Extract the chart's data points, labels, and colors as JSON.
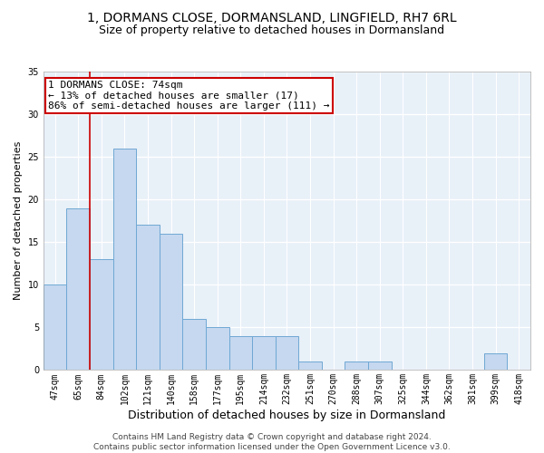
{
  "title": "1, DORMANS CLOSE, DORMANSLAND, LINGFIELD, RH7 6RL",
  "subtitle": "Size of property relative to detached houses in Dormansland",
  "xlabel": "Distribution of detached houses by size in Dormansland",
  "ylabel": "Number of detached properties",
  "categories": [
    "47sqm",
    "65sqm",
    "84sqm",
    "102sqm",
    "121sqm",
    "140sqm",
    "158sqm",
    "177sqm",
    "195sqm",
    "214sqm",
    "232sqm",
    "251sqm",
    "270sqm",
    "288sqm",
    "307sqm",
    "325sqm",
    "344sqm",
    "362sqm",
    "381sqm",
    "399sqm",
    "418sqm"
  ],
  "values": [
    10,
    19,
    13,
    26,
    17,
    16,
    6,
    5,
    4,
    4,
    4,
    1,
    0,
    1,
    1,
    0,
    0,
    0,
    0,
    2,
    0
  ],
  "bar_color": "#c5d8ef",
  "bar_edge_color": "#6fa8d4",
  "highlight_line_color": "#cc0000",
  "annotation_text": "1 DORMANS CLOSE: 74sqm\n← 13% of detached houses are smaller (17)\n86% of semi-detached houses are larger (111) →",
  "annotation_box_color": "#ffffff",
  "annotation_box_edge": "#cc0000",
  "ylim": [
    0,
    35
  ],
  "yticks": [
    0,
    5,
    10,
    15,
    20,
    25,
    30,
    35
  ],
  "background_color": "#e8f0f8",
  "grid_color": "#ffffff",
  "footer": "Contains HM Land Registry data © Crown copyright and database right 2024.\nContains public sector information licensed under the Open Government Licence v3.0.",
  "title_fontsize": 10,
  "subtitle_fontsize": 9,
  "xlabel_fontsize": 9,
  "ylabel_fontsize": 8,
  "tick_fontsize": 7,
  "annotation_fontsize": 8,
  "footer_fontsize": 6.5
}
